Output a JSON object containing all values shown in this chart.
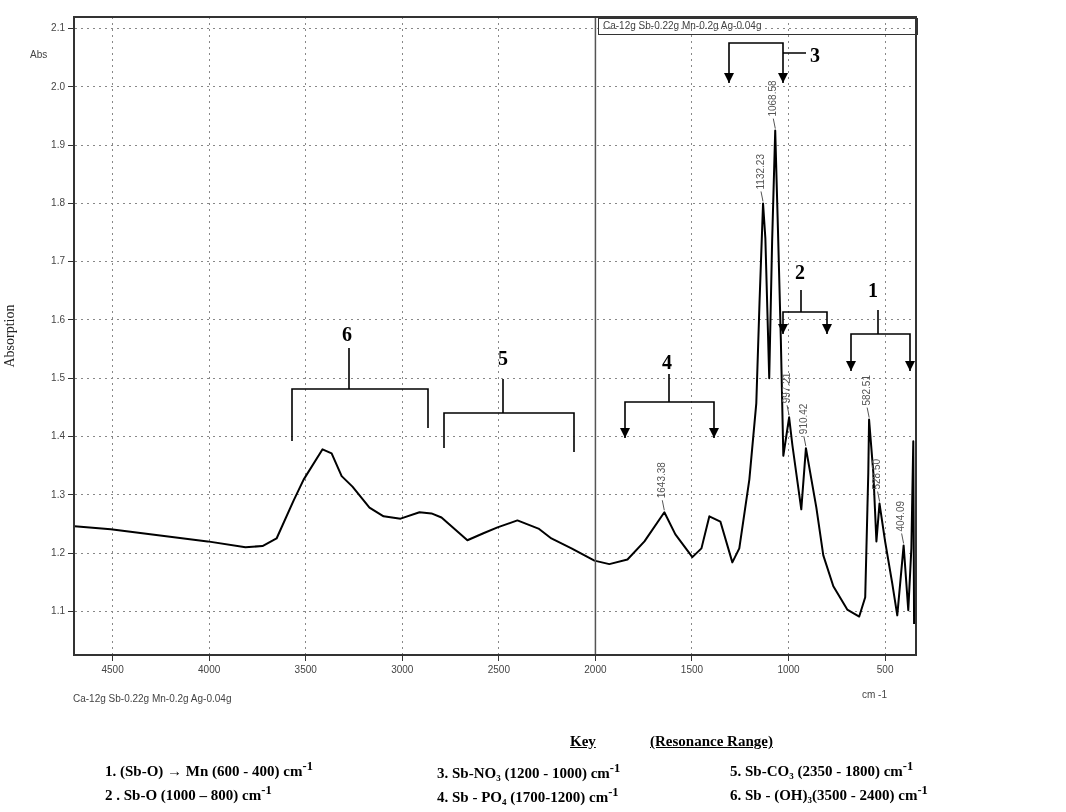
{
  "chart_data": {
    "type": "line",
    "xlabel": "cm -1",
    "ylabel": "Absorption",
    "xlim": [
      4700,
      340
    ],
    "xticks": [
      4500,
      4000,
      3500,
      3000,
      2500,
      2000,
      1500,
      1000,
      500
    ],
    "ylim": [
      1.025,
      2.12
    ],
    "yticks": [
      {
        "value": 1.1,
        "label": "1.1"
      },
      {
        "value": 1.2,
        "label": "1.2"
      },
      {
        "value": 1.3,
        "label": "1.3"
      },
      {
        "value": 1.4,
        "label": "1.4"
      },
      {
        "value": 1.5,
        "label": "1.5"
      },
      {
        "value": 1.6,
        "label": "1.6"
      },
      {
        "value": 1.7,
        "label": "1.7"
      },
      {
        "value": 1.8,
        "label": "1.8"
      },
      {
        "value": 1.9,
        "label": "1.9"
      },
      {
        "value": 2,
        "label": "2.0"
      },
      {
        "value": 2.1,
        "label": "2.1"
      }
    ],
    "grid": true,
    "legend": false,
    "marker": "none",
    "line_style": "solid",
    "ref_lines": [
      {
        "axis": "x",
        "value": 2000,
        "color": "#555555"
      }
    ],
    "series": [
      {
        "color": "#000000",
        "x": [
          4697,
          4510,
          4008,
          3812,
          3724,
          3651,
          3563,
          3511,
          3413,
          3366,
          3314,
          3258,
          3170,
          3097,
          3009,
          2911,
          2849,
          2797,
          2663,
          2580,
          2507,
          2404,
          2295,
          2228,
          2124,
          2005,
          1928,
          1834,
          1746,
          1643,
          1586,
          1498,
          1451,
          1410,
          1353,
          1291,
          1255,
          1203,
          1167,
          1150,
          1132,
          1120,
          1100,
          1085,
          1069,
          1055,
          1040,
          1027,
          997,
          980,
          934,
          910,
          856,
          820,
          768,
          696,
          634,
          603,
          587,
          583,
          561,
          545,
          529,
          500,
          463,
          437,
          404,
          380,
          364,
          354,
          350
        ],
        "values": [
          1.246,
          1.241,
          1.22,
          1.21,
          1.212,
          1.225,
          1.29,
          1.326,
          1.378,
          1.371,
          1.332,
          1.314,
          1.278,
          1.263,
          1.259,
          1.27,
          1.268,
          1.261,
          1.222,
          1.234,
          1.244,
          1.256,
          1.242,
          1.225,
          1.208,
          1.187,
          1.181,
          1.189,
          1.22,
          1.27,
          1.232,
          1.193,
          1.208,
          1.263,
          1.254,
          1.184,
          1.208,
          1.326,
          1.457,
          1.633,
          1.8,
          1.74,
          1.5,
          1.735,
          1.925,
          1.757,
          1.568,
          1.367,
          1.433,
          1.385,
          1.275,
          1.38,
          1.278,
          1.196,
          1.143,
          1.103,
          1.091,
          1.124,
          1.338,
          1.429,
          1.338,
          1.22,
          1.285,
          1.22,
          1.148,
          1.093,
          1.213,
          1.102,
          1.208,
          1.392,
          1.078
        ]
      }
    ],
    "annotations": [
      "Abs",
      "Ca-12g Sb-0.22g Mn-0.2g Ag-0.04g",
      "Ca-12g Sb-0.22g Mn-0.2g Ag-0.04g",
      "1",
      "2",
      "3",
      "4",
      "5",
      "6",
      {
        "text": "1132.23",
        "x": 1132.23,
        "y": 1.8
      },
      {
        "text": "1068.58",
        "x": 1068.58,
        "y": 1.925
      },
      {
        "text": "997.21",
        "x": 997.21,
        "y": 1.433
      },
      {
        "text": "910.42",
        "x": 910.42,
        "y": 1.38
      },
      {
        "text": "1643.38",
        "x": 1643.38,
        "y": 1.27
      },
      {
        "text": "582.51",
        "x": 582.51,
        "y": 1.429
      },
      {
        "text": "528.50",
        "x": 528.5,
        "y": 1.285
      },
      {
        "text": "404.09",
        "x": 404.09,
        "y": 1.213
      },
      "Key",
      "(Resonance Range)",
      "1. (Sb-O) → Mn (600 - 400) cm$^{-1}$",
      "2 . Sb-O (1000 – 800) cm$^{-1}$",
      "3. Sb-NO₃ (1200 - 1000) cm$^{-1}$",
      "4. Sb - PO₄ (1700-1200) cm$^{-1}$",
      "5. Sb-CO₃ (2350 - 1800) cm$^{-1}$",
      "6. Sb - (OH)₃(3500 - 2400) cm$^{-1}$"
    ]
  }
}
